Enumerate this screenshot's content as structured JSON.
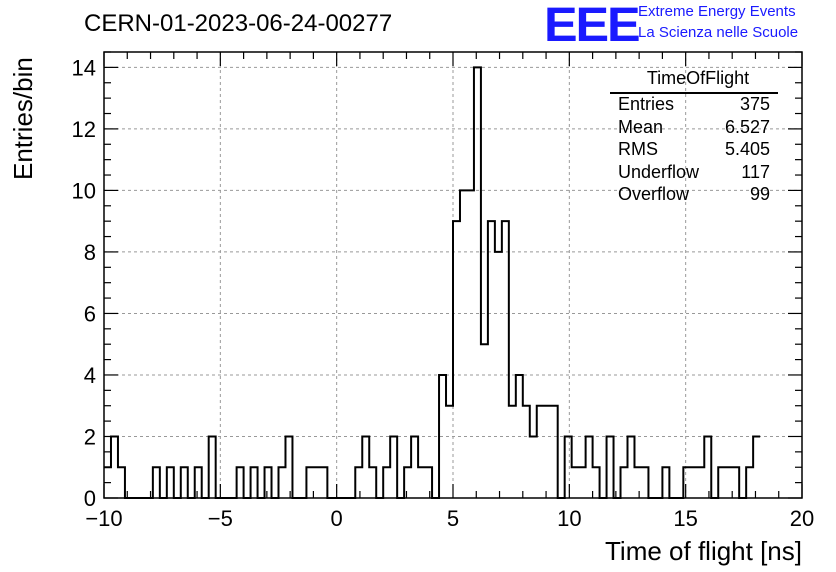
{
  "title": "CERN-01-2023-06-24-00277",
  "logo": {
    "mark": "EEE",
    "line1": "Extreme Energy Events",
    "line2": "La Scienza nelle Scuole"
  },
  "stats": {
    "name": "TimeOfFlight",
    "rows": [
      {
        "label": "Entries",
        "value": "375"
      },
      {
        "label": "Mean",
        "value": "6.527"
      },
      {
        "label": "RMS",
        "value": "5.405"
      },
      {
        "label": "Underflow",
        "value": "117"
      },
      {
        "label": "Overflow",
        "value": "99"
      }
    ]
  },
  "chart_data": {
    "type": "histogram",
    "xlabel": "Time of flight [ns]",
    "ylabel": "Entries/bin",
    "xlim": [
      -10,
      20
    ],
    "ylim": [
      0,
      14.5
    ],
    "bin_start": -10,
    "bin_width": 0.3,
    "x_ticks": [
      -10,
      -5,
      0,
      5,
      10,
      15,
      20
    ],
    "y_ticks": [
      0,
      2,
      4,
      6,
      8,
      10,
      12,
      14
    ],
    "grid": true,
    "values": [
      1,
      2,
      1,
      0,
      0,
      0,
      0,
      1,
      0,
      1,
      0,
      1,
      0,
      1,
      0,
      2,
      0,
      0,
      0,
      1,
      0,
      1,
      0,
      1,
      0,
      1,
      2,
      0,
      0,
      1,
      1,
      1,
      0,
      0,
      0,
      0,
      1,
      2,
      1,
      0,
      1,
      2,
      0,
      1,
      2,
      1,
      1,
      0,
      4,
      3,
      9,
      10,
      10,
      14,
      5,
      9,
      8,
      9,
      3,
      4,
      3,
      2,
      3,
      3,
      3,
      0,
      2,
      1,
      1,
      2,
      1,
      0,
      2,
      0,
      1,
      2,
      1,
      1,
      0,
      0,
      1,
      0,
      0,
      1,
      1,
      1,
      2,
      0,
      1,
      1,
      1,
      0,
      1,
      2
    ]
  }
}
